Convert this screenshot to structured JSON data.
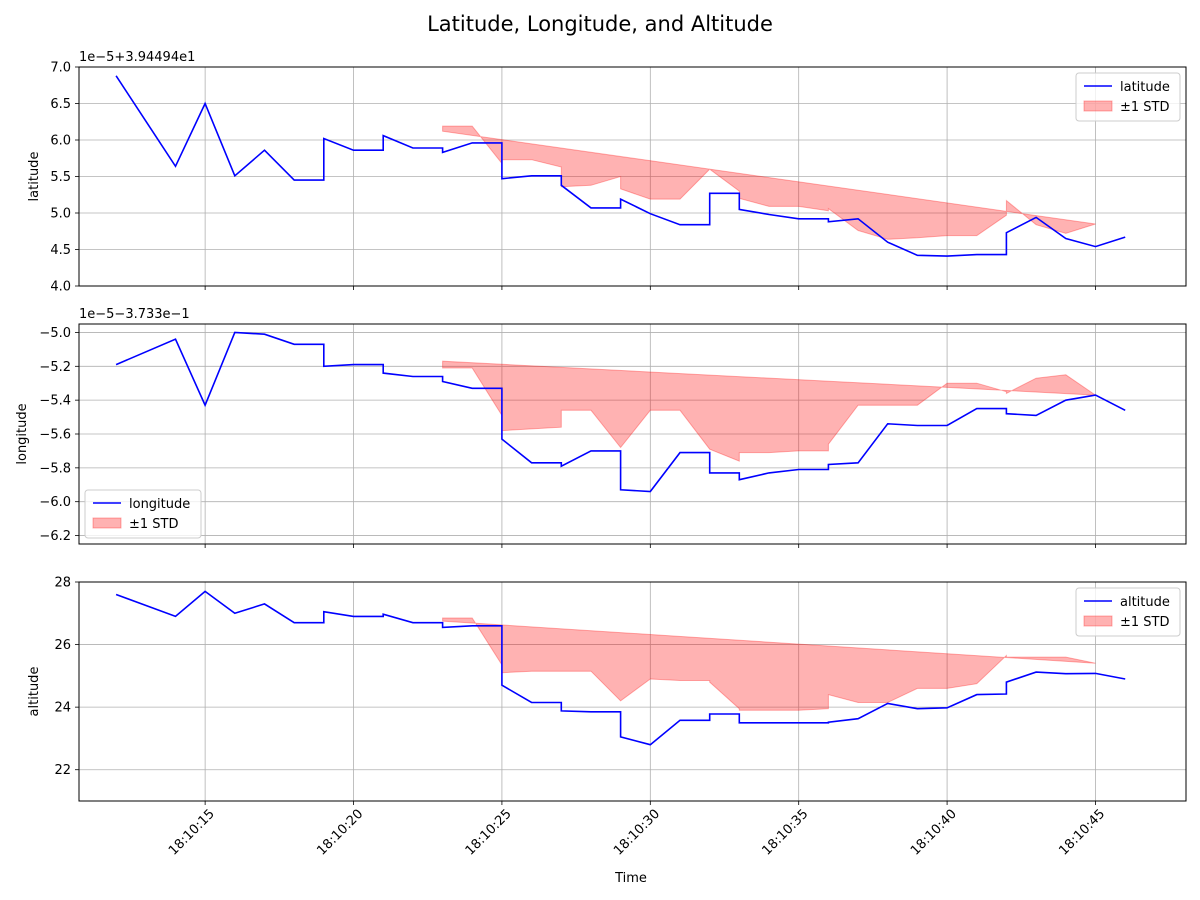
{
  "figure": {
    "title": "Latitude, Longitude, and Altitude",
    "xlabel": "Time"
  },
  "colors": {
    "line": "#0000ff",
    "band": "#ff0000",
    "grid": "#b0b0b0"
  },
  "chart_data": [
    {
      "type": "line",
      "ylabel": "latitude",
      "offset_label": "1e−5+3.94494e1",
      "ylim": [
        4.0,
        7.0
      ],
      "yticks": [
        "4.0",
        "4.5",
        "5.0",
        "5.5",
        "6.0",
        "6.5",
        "7.0"
      ],
      "legend": {
        "placement": "upper right",
        "entries": [
          "latitude",
          "±1 STD"
        ]
      },
      "grid": true,
      "x_seconds": [
        12,
        14,
        15,
        16,
        17,
        18,
        19,
        19,
        20,
        21,
        21,
        22,
        23,
        23,
        24,
        25,
        25,
        26,
        27,
        27,
        28,
        29,
        29,
        30,
        31,
        32,
        32,
        33,
        33,
        34,
        35,
        36,
        36,
        37,
        38,
        39,
        40,
        41,
        42,
        42,
        43,
        44,
        45,
        46
      ],
      "values": [
        6.88,
        5.64,
        6.5,
        5.51,
        5.86,
        5.45,
        5.45,
        6.02,
        5.86,
        5.86,
        6.06,
        5.89,
        5.89,
        5.83,
        5.96,
        5.96,
        5.47,
        5.51,
        5.51,
        5.38,
        5.07,
        5.07,
        5.19,
        4.99,
        4.84,
        4.84,
        5.27,
        5.27,
        5.05,
        4.98,
        4.92,
        4.92,
        4.88,
        4.92,
        4.6,
        4.42,
        4.41,
        4.43,
        4.43,
        4.73,
        4.94,
        4.65,
        4.54,
        4.67
      ],
      "band_from": 12,
      "std_low": [
        5.54,
        5.73,
        5.73,
        5.25,
        5.28,
        5.28,
        5.13,
        4.76,
        4.74,
        4.9,
        4.63,
        4.48,
        4.47,
        4.95,
        4.95,
        4.8,
        4.76,
        4.73,
        4.73,
        4.73,
        4.76,
        4.4,
        4.2,
        4.15,
        4.18,
        4.18,
        4.48,
        4.72,
        4.45,
        4.33,
        4.49
      ],
      "std_high": [
        6.12,
        6.19,
        6.19,
        5.68,
        5.73,
        5.73,
        5.63,
        5.36,
        5.38,
        5.5,
        5.33,
        5.19,
        5.19,
        5.6,
        5.6,
        5.3,
        5.2,
        5.09,
        5.09,
        5.03,
        5.06,
        4.76,
        4.64,
        4.66,
        4.69,
        4.69,
        4.97,
        5.17,
        4.84,
        4.72,
        4.85
      ]
    },
    {
      "type": "line",
      "ylabel": "longitude",
      "offset_label": "1e−5−3.733e−1",
      "ylim": [
        -6.25,
        -4.95
      ],
      "yticks": [
        "−6.2",
        "−6.0",
        "−5.8",
        "−5.6",
        "−5.4",
        "−5.2",
        "−5.0"
      ],
      "legend": {
        "placement": "lower left",
        "entries": [
          "longitude",
          "±1 STD"
        ]
      },
      "grid": true,
      "x_seconds": [
        12,
        14,
        15,
        16,
        17,
        18,
        19,
        19,
        20,
        21,
        21,
        22,
        23,
        23,
        24,
        25,
        25,
        26,
        27,
        27,
        28,
        29,
        29,
        30,
        31,
        32,
        32,
        33,
        33,
        34,
        35,
        36,
        36,
        37,
        38,
        39,
        40,
        41,
        42,
        42,
        43,
        44,
        45,
        46
      ],
      "values": [
        -5.19,
        -5.04,
        -5.43,
        -5.0,
        -5.01,
        -5.07,
        -5.07,
        -5.2,
        -5.19,
        -5.19,
        -5.24,
        -5.26,
        -5.26,
        -5.29,
        -5.33,
        -5.33,
        -5.63,
        -5.77,
        -5.77,
        -5.79,
        -5.7,
        -5.7,
        -5.93,
        -5.94,
        -5.71,
        -5.71,
        -5.83,
        -5.83,
        -5.87,
        -5.83,
        -5.81,
        -5.81,
        -5.78,
        -5.77,
        -5.54,
        -5.55,
        -5.55,
        -5.45,
        -5.45,
        -5.48,
        -5.49,
        -5.4,
        -5.37,
        -5.46
      ],
      "band_from": 12,
      "std_low": [
        -5.41,
        -5.44,
        -5.44,
        -5.8,
        -5.98,
        -5.99,
        -6.03,
        -5.93,
        -5.93,
        -6.18,
        -6.19,
        -5.92,
        -5.91,
        -6.01,
        -6.0,
        -5.96,
        -5.93,
        -5.9,
        -5.9,
        -5.86,
        -5.85,
        -5.65,
        -5.67,
        -5.67,
        -5.55,
        -5.55,
        -5.63,
        -5.64,
        -5.53,
        -5.48,
        -5.55
      ],
      "std_high": [
        -5.17,
        -5.21,
        -5.21,
        -5.49,
        -5.58,
        -5.57,
        -5.56,
        -5.46,
        -5.46,
        -5.68,
        -5.68,
        -5.46,
        -5.46,
        -5.69,
        -5.69,
        -5.76,
        -5.71,
        -5.71,
        -5.7,
        -5.7,
        -5.66,
        -5.43,
        -5.43,
        -5.43,
        -5.3,
        -5.3,
        -5.35,
        -5.36,
        -5.27,
        -5.25,
        -5.37
      ]
    },
    {
      "type": "line",
      "ylabel": "altitude",
      "offset_label": "",
      "ylim": [
        21.0,
        28.0
      ],
      "yticks": [
        "22",
        "24",
        "26",
        "28"
      ],
      "legend": {
        "placement": "upper right",
        "entries": [
          "altitude",
          "±1 STD"
        ]
      },
      "grid": true,
      "x_seconds": [
        12,
        14,
        15,
        16,
        17,
        18,
        19,
        19,
        20,
        21,
        21,
        22,
        23,
        23,
        24,
        25,
        25,
        26,
        27,
        27,
        28,
        29,
        29,
        30,
        31,
        32,
        32,
        33,
        33,
        34,
        35,
        36,
        36,
        37,
        38,
        39,
        40,
        41,
        42,
        42,
        43,
        44,
        45,
        46
      ],
      "values": [
        27.6,
        26.9,
        27.7,
        27.0,
        27.3,
        26.7,
        26.7,
        27.05,
        26.9,
        26.9,
        26.97,
        26.7,
        26.7,
        26.55,
        26.6,
        26.6,
        24.7,
        24.15,
        24.15,
        23.88,
        23.85,
        23.85,
        23.05,
        22.8,
        23.58,
        23.58,
        23.78,
        23.78,
        23.5,
        23.5,
        23.5,
        23.5,
        23.52,
        23.63,
        24.12,
        23.95,
        23.98,
        24.4,
        24.42,
        24.8,
        25.12,
        25.07,
        25.08,
        24.9
      ],
      "band_from": 12,
      "std_low": [
        26.2,
        26.35,
        26.35,
        24.0,
        23.15,
        23.1,
        22.6,
        22.55,
        22.5,
        21.6,
        21.3,
        22.25,
        22.3,
        22.75,
        22.95,
        23.05,
        23.1,
        23.1,
        23.1,
        23.35,
        23.8,
        23.7,
        23.7,
        24.05,
        24.05,
        24.25,
        24.6,
        24.55,
        24.5,
        24.5,
        24.4
      ],
      "std_high": [
        26.75,
        26.85,
        26.85,
        25.35,
        25.1,
        25.15,
        25.15,
        25.15,
        25.15,
        24.2,
        24.2,
        24.9,
        24.85,
        24.85,
        24.8,
        23.95,
        23.9,
        23.9,
        23.9,
        23.95,
        24.4,
        24.15,
        24.15,
        24.6,
        24.6,
        24.75,
        25.65,
        25.6,
        25.6,
        25.6,
        25.4
      ]
    }
  ],
  "x_axis": {
    "tick_seconds": [
      15,
      20,
      25,
      30,
      35,
      40,
      45
    ],
    "tick_labels": [
      "18:10:15",
      "18:10:20",
      "18:10:25",
      "18:10:30",
      "18:10:35",
      "18:10:40",
      "18:10:45"
    ]
  }
}
